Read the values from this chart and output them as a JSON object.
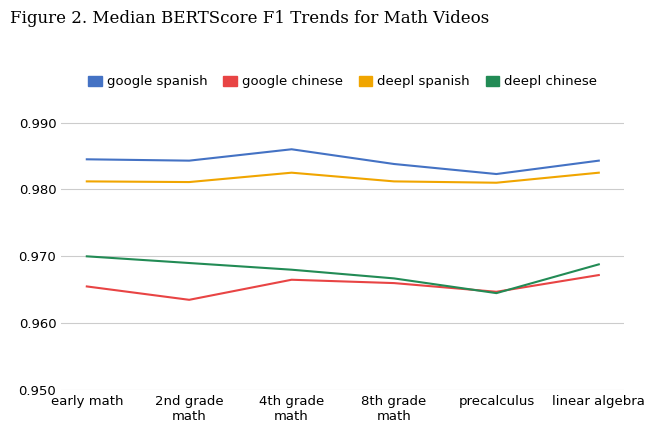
{
  "title": "Figure 2. Median BERTScore F1 Trends for Math Videos",
  "categories": [
    "early math",
    "2nd grade\nmath",
    "4th grade\nmath",
    "8th grade\nmath",
    "precalculus",
    "linear algebra"
  ],
  "series": {
    "google spanish": {
      "values": [
        0.9845,
        0.9843,
        0.986,
        0.9838,
        0.9823,
        0.9843
      ],
      "color": "#4472c4",
      "label": "google spanish"
    },
    "google chinese": {
      "values": [
        0.9655,
        0.9635,
        0.9665,
        0.966,
        0.9647,
        0.9672
      ],
      "color": "#e84444",
      "label": "google chinese"
    },
    "deepl spanish": {
      "values": [
        0.9812,
        0.9811,
        0.9825,
        0.9812,
        0.981,
        0.9825
      ],
      "color": "#f0a500",
      "label": "deepl spanish"
    },
    "deepl chinese": {
      "values": [
        0.97,
        0.969,
        0.968,
        0.9667,
        0.9645,
        0.9688
      ],
      "color": "#228B55",
      "label": "deepl chinese"
    }
  },
  "ylim": [
    0.95,
    0.993
  ],
  "yticks": [
    0.95,
    0.96,
    0.97,
    0.98,
    0.99
  ],
  "background_color": "#ffffff",
  "grid_color": "#cccccc",
  "title_fontsize": 12,
  "legend_fontsize": 9.5,
  "tick_fontsize": 9.5
}
